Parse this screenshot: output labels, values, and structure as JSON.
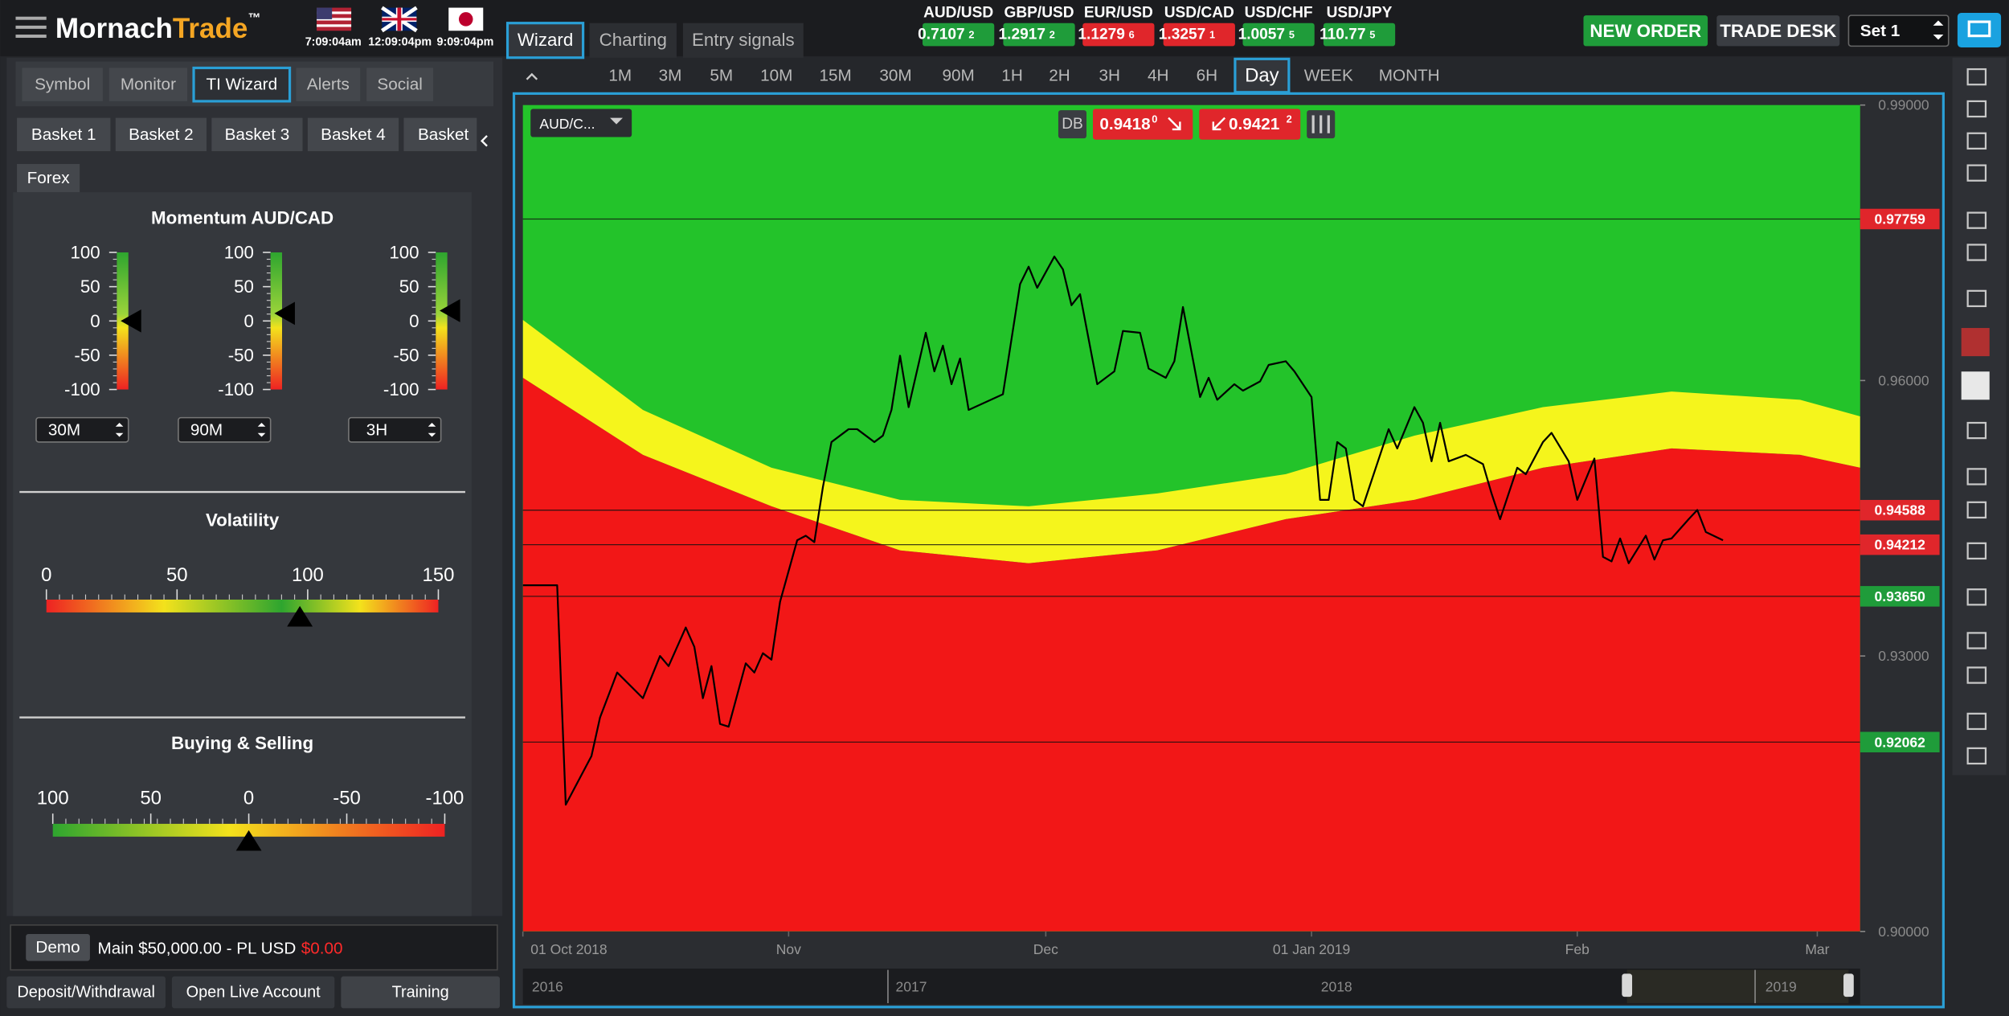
{
  "header": {
    "brand": "Mornach",
    "brand_accent": "Trade",
    "trademark": "™",
    "clocks": [
      "7:09:04am",
      "12:09:04pm",
      "9:09:04pm"
    ],
    "tabs": [
      "Wizard",
      "Charting",
      "Entry signals"
    ],
    "active_tab": 0,
    "quotes": [
      {
        "pair": "AUD/USD",
        "price": "0.7107",
        "pip": "2",
        "color": "#1f9c3a"
      },
      {
        "pair": "GBP/USD",
        "price": "1.2917",
        "pip": "2",
        "color": "#1f9c3a"
      },
      {
        "pair": "EUR/USD",
        "price": "1.1279",
        "pip": "6",
        "color": "#e0262b"
      },
      {
        "pair": "USD/CAD",
        "price": "1.3257",
        "pip": "1",
        "color": "#e0262b"
      },
      {
        "pair": "USD/CHF",
        "price": "1.0057",
        "pip": "5",
        "color": "#1f9c3a"
      },
      {
        "pair": "USD/JPY",
        "price": "110.77",
        "pip": "5",
        "color": "#1f9c3a"
      }
    ],
    "new_order": "NEW ORDER",
    "trade_desk": "TRADE DESK",
    "set": "Set 1"
  },
  "left": {
    "tabs": [
      "Symbol",
      "Monitor",
      "TI Wizard",
      "Alerts",
      "Social"
    ],
    "active_tab": 2,
    "baskets": [
      "Basket 1",
      "Basket 2",
      "Basket 3",
      "Basket 4",
      "Basket"
    ],
    "market": "Forex",
    "momentum": {
      "title": "Momentum AUD/CAD",
      "scale": [
        100,
        50,
        0,
        -50,
        -100
      ],
      "values": [
        0,
        11,
        15
      ],
      "timeframes": [
        "30M",
        "90M",
        "3H"
      ]
    },
    "volatility": {
      "title": "Volatility",
      "scale": [
        0,
        50,
        100,
        150
      ],
      "value": 97
    },
    "buying_selling": {
      "title": "Buying & Selling",
      "scale": [
        100,
        50,
        0,
        -50,
        -100
      ],
      "value": 0
    },
    "account": {
      "mode": "Demo",
      "summary": "Main $50,000.00 - PL USD",
      "pl": "$0.00"
    },
    "buttons": [
      "Deposit/Withdrawal",
      "Open Live Account",
      "Training"
    ]
  },
  "toolbar": {
    "timeframes": [
      "1M",
      "3M",
      "5M",
      "10M",
      "15M",
      "30M",
      "90M",
      "1H",
      "2H",
      "3H",
      "4H",
      "6H",
      "Day",
      "WEEK",
      "MONTH"
    ],
    "active": 12
  },
  "chart": {
    "symbol": "AUD/C...",
    "db": "DB",
    "bid": "0.9418",
    "bid_pip": "0",
    "ask": "0.9421",
    "ask_pip": "2",
    "navigator": [
      "2016",
      "2017",
      "2018",
      "2019"
    ]
  },
  "chart_data": {
    "type": "line",
    "color": "#000000",
    "x": [
      0,
      4,
      5,
      8,
      9,
      11,
      14,
      16,
      17,
      19,
      20,
      21,
      22,
      23,
      24,
      26,
      27,
      28,
      29,
      30,
      32,
      33,
      34,
      35,
      36,
      38,
      39,
      41,
      42,
      43,
      44,
      45,
      47,
      48,
      49,
      50,
      51,
      52,
      56,
      58,
      59,
      60,
      62,
      63,
      64,
      65,
      67,
      69,
      70,
      72,
      73,
      75,
      76,
      77,
      79,
      80,
      81,
      83,
      84,
      86,
      87,
      89,
      90,
      92,
      93,
      94,
      95,
      96,
      97,
      98,
      100,
      101,
      102,
      104,
      105,
      106,
      107,
      108,
      110,
      112,
      113,
      114,
      116,
      117,
      119,
      120,
      122,
      123,
      125,
      126,
      127,
      128,
      129,
      131,
      132,
      133,
      134,
      136,
      137,
      138,
      140
    ],
    "values": [
      0.9377,
      0.9377,
      0.9138,
      0.9191,
      0.9233,
      0.9282,
      0.9254,
      0.93,
      0.9289,
      0.9331,
      0.931,
      0.9254,
      0.9289,
      0.9226,
      0.9223,
      0.9292,
      0.9282,
      0.9303,
      0.9296,
      0.9359,
      0.9426,
      0.9431,
      0.9424,
      0.9484,
      0.9533,
      0.9547,
      0.9547,
      0.9533,
      0.954,
      0.9568,
      0.9627,
      0.9571,
      0.9652,
      0.961,
      0.9638,
      0.9596,
      0.9624,
      0.9568,
      0.9585,
      0.9705,
      0.9724,
      0.9701,
      0.9735,
      0.9721,
      0.9682,
      0.9694,
      0.9596,
      0.961,
      0.9654,
      0.9652,
      0.9613,
      0.9603,
      0.9621,
      0.968,
      0.9582,
      0.9603,
      0.9579,
      0.9596,
      0.9589,
      0.9599,
      0.9617,
      0.9621,
      0.961,
      0.9582,
      0.947,
      0.947,
      0.9533,
      0.9526,
      0.947,
      0.9463,
      0.9519,
      0.9547,
      0.9526,
      0.9571,
      0.9554,
      0.9512,
      0.9554,
      0.9512,
      0.9519,
      0.9509,
      0.9477,
      0.9449,
      0.9505,
      0.9498,
      0.9533,
      0.9543,
      0.9512,
      0.947,
      0.9515,
      0.9408,
      0.9403,
      0.9428,
      0.9401,
      0.9431,
      0.9405,
      0.9426,
      0.9428,
      0.9449,
      0.9459,
      0.9435,
      0.9426
    ],
    "bands": {
      "x": [
        0,
        14,
        29,
        44,
        59,
        74,
        89,
        104,
        119,
        134,
        149,
        156
      ],
      "upper": [
        0.9666,
        0.9568,
        0.9505,
        0.947,
        0.9463,
        0.9477,
        0.9498,
        0.954,
        0.9571,
        0.9588,
        0.9579,
        0.9561
      ],
      "lower": [
        0.9603,
        0.9519,
        0.9463,
        0.9415,
        0.9401,
        0.9415,
        0.9449,
        0.947,
        0.9505,
        0.9526,
        0.9519,
        0.9505
      ],
      "colors": {
        "above": "#23c32a",
        "inside": "#f5f51c",
        "below": "#f21717"
      }
    },
    "levels": [
      {
        "value": 0.97759,
        "color": "#e0262b"
      },
      {
        "value": 0.94588,
        "color": "#e0262b"
      },
      {
        "value": 0.94212,
        "color": "#e0262b"
      },
      {
        "value": 0.9365,
        "label": "0.93650",
        "color": "#1f9c3a"
      },
      {
        "value": 0.92062,
        "color": "#1f9c3a"
      }
    ],
    "xlim": [
      0,
      156
    ],
    "xticks": [
      {
        "value": 0,
        "label": "01 Oct 2018"
      },
      {
        "value": 31,
        "label": "Nov"
      },
      {
        "value": 61,
        "label": "Dec"
      },
      {
        "value": 92,
        "label": "01 Jan 2019"
      },
      {
        "value": 123,
        "label": "Feb"
      },
      {
        "value": 151,
        "label": "Mar"
      }
    ],
    "ylim": [
      0.9,
      0.99
    ],
    "yticks": [
      {
        "value": 0.9,
        "label": "0.90000"
      },
      {
        "value": 0.93,
        "label": "0.93000"
      },
      {
        "value": 0.96,
        "label": "0.96000"
      },
      {
        "value": 0.99,
        "label": "0.99000"
      }
    ]
  }
}
